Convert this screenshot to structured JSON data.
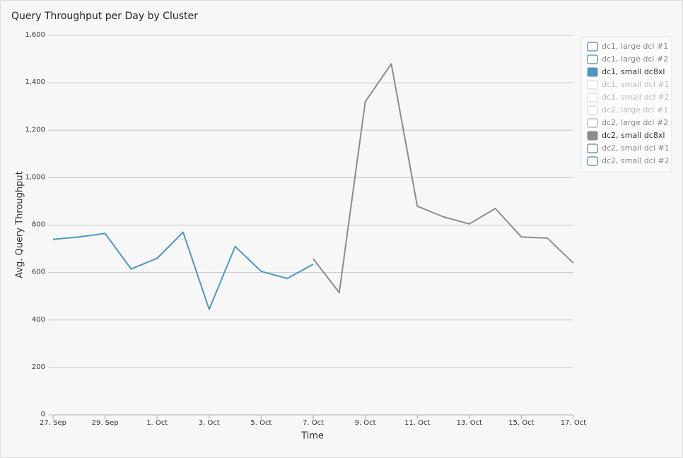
{
  "chart_data": {
    "type": "line",
    "title": "Query Throughput per Day by Cluster",
    "x_label": "Time",
    "y_label": "Avg. Query Throughput",
    "categories": [
      "27. Sep",
      null,
      "29. Sep",
      null,
      "1. Oct",
      null,
      "3. Oct",
      null,
      "5. Oct",
      null,
      "7. Oct",
      null,
      "9. Oct",
      null,
      "11. Oct",
      null,
      "13. Oct",
      null,
      "15. Oct",
      null,
      "17. Oct"
    ],
    "ylim": [
      0,
      1600
    ],
    "yticks": [
      0,
      200,
      400,
      600,
      800,
      {
        "value": 1000,
        "label": "1,000"
      },
      {
        "value": 1200,
        "label": "1,200"
      },
      {
        "value": 1400,
        "label": "1,400"
      },
      {
        "value": 1600,
        "label": "1,600"
      }
    ],
    "grid": true,
    "legend": "right",
    "series": [
      {
        "name": "dc1, large dcl #1",
        "color": "#2b6e80",
        "active": false,
        "values": [
          null,
          null,
          null,
          null,
          null,
          null,
          null,
          null,
          null,
          null,
          null,
          null,
          null,
          null,
          null,
          null,
          null,
          null,
          null,
          null,
          null
        ]
      },
      {
        "name": "dc1, large dcl #2",
        "color": "#2b6e80",
        "active": false,
        "values": [
          null,
          null,
          null,
          null,
          null,
          null,
          null,
          null,
          null,
          null,
          null,
          null,
          null,
          null,
          null,
          null,
          null,
          null,
          null,
          null,
          null
        ]
      },
      {
        "name": "dc1, small dc8xl",
        "color": "#4f97c0",
        "active": true,
        "values": [
          740,
          750,
          765,
          615,
          660,
          770,
          445,
          710,
          605,
          575,
          635,
          null,
          null,
          null,
          null,
          null,
          null,
          null,
          null,
          null,
          null
        ]
      },
      {
        "name": "dc1, small dcl #1",
        "color": "#c8d3d6",
        "active": false,
        "values": [
          null,
          null,
          null,
          null,
          null,
          null,
          null,
          null,
          null,
          null,
          null,
          null,
          null,
          null,
          null,
          null,
          null,
          null,
          null,
          null,
          null
        ]
      },
      {
        "name": "dc1, small dcl #2",
        "color": "#c8d3d6",
        "active": false,
        "values": [
          null,
          null,
          null,
          null,
          null,
          null,
          null,
          null,
          null,
          null,
          null,
          null,
          null,
          null,
          null,
          null,
          null,
          null,
          null,
          null,
          null
        ]
      },
      {
        "name": "dc2, large dcl #1",
        "color": "#cccccc",
        "active": false,
        "values": [
          null,
          null,
          null,
          null,
          null,
          null,
          null,
          null,
          null,
          null,
          null,
          null,
          null,
          null,
          null,
          null,
          null,
          null,
          null,
          null,
          null
        ]
      },
      {
        "name": "dc2, large dcl #2",
        "color": "#999999",
        "active": false,
        "values": [
          null,
          null,
          null,
          null,
          null,
          null,
          null,
          null,
          null,
          null,
          null,
          null,
          null,
          null,
          null,
          null,
          null,
          null,
          null,
          null,
          null
        ]
      },
      {
        "name": "dc2, small dc8xl",
        "color": "#8c8c8c",
        "active": true,
        "values": [
          null,
          null,
          null,
          null,
          null,
          null,
          null,
          null,
          null,
          null,
          658,
          515,
          1320,
          1480,
          880,
          835,
          805,
          870,
          750,
          745,
          640
        ]
      },
      {
        "name": "dc2, small dcl #1",
        "color": "#2b6e80",
        "active": false,
        "values": [
          null,
          null,
          null,
          null,
          null,
          null,
          null,
          null,
          null,
          null,
          null,
          null,
          null,
          null,
          null,
          null,
          null,
          null,
          null,
          null,
          null
        ]
      },
      {
        "name": "dc2, small dcl #2",
        "color": "#2b6e80",
        "active": false,
        "values": [
          null,
          null,
          null,
          null,
          null,
          null,
          null,
          null,
          null,
          null,
          null,
          null,
          null,
          null,
          null,
          null,
          null,
          null,
          null,
          null,
          null
        ]
      }
    ]
  }
}
